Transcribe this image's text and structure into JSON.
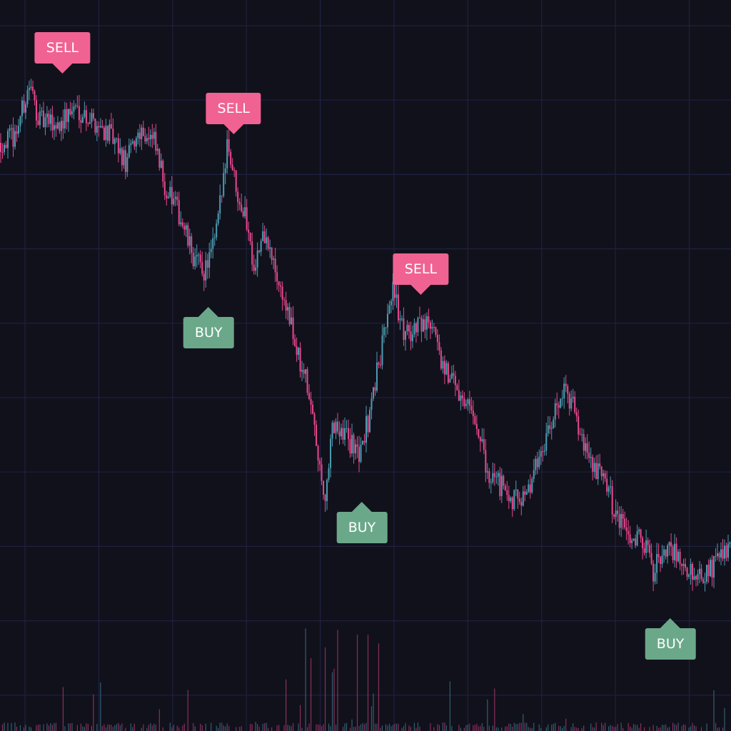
{
  "chart_data": {
    "type": "candlestick",
    "title": "",
    "xlabel": "",
    "ylabel": "",
    "grid": true,
    "ylim": [
      0,
      102.4
    ],
    "x_range": [
      0,
      410
    ],
    "colors": {
      "background": "#11111b",
      "grid": "#1e2142",
      "up": "#4d9db3",
      "down": "#e9488f",
      "sell": "#f06292",
      "buy": "#6aa889"
    },
    "close_path": [
      [
        0,
        82.4
      ],
      [
        8,
        83.4
      ],
      [
        16,
        90.4
      ],
      [
        22,
        85.4
      ],
      [
        32,
        84.9
      ],
      [
        42,
        87.4
      ],
      [
        52,
        85.4
      ],
      [
        60,
        83.9
      ],
      [
        70,
        79.4
      ],
      [
        78,
        84.4
      ],
      [
        86,
        82.4
      ],
      [
        92,
        76.4
      ],
      [
        100,
        72.4
      ],
      [
        108,
        66.4
      ],
      [
        114,
        64.4
      ],
      [
        120,
        68.4
      ],
      [
        124,
        75.4
      ],
      [
        127,
        82.9
      ],
      [
        132,
        76.4
      ],
      [
        138,
        71.4
      ],
      [
        142,
        65.4
      ],
      [
        148,
        69.4
      ],
      [
        154,
        64.4
      ],
      [
        160,
        59.4
      ],
      [
        166,
        53.4
      ],
      [
        172,
        48.4
      ],
      [
        178,
        38.4
      ],
      [
        182,
        32.4
      ],
      [
        186,
        43.4
      ],
      [
        192,
        42.4
      ],
      [
        200,
        38.4
      ],
      [
        206,
        43.4
      ],
      [
        212,
        51.4
      ],
      [
        220,
        62.4
      ],
      [
        226,
        55.4
      ],
      [
        232,
        56.4
      ],
      [
        240,
        57.4
      ],
      [
        248,
        51.4
      ],
      [
        258,
        47.4
      ],
      [
        266,
        44.4
      ],
      [
        272,
        36.9
      ],
      [
        282,
        33.9
      ],
      [
        288,
        32.4
      ],
      [
        294,
        32.4
      ],
      [
        302,
        38.4
      ],
      [
        308,
        42.4
      ],
      [
        314,
        47.4
      ],
      [
        320,
        46.4
      ],
      [
        326,
        40.4
      ],
      [
        332,
        37.4
      ],
      [
        340,
        34.4
      ],
      [
        346,
        29.4
      ],
      [
        354,
        27.4
      ],
      [
        362,
        26.4
      ],
      [
        366,
        22.4
      ],
      [
        374,
        26.4
      ],
      [
        380,
        24.4
      ],
      [
        384,
        23.4
      ],
      [
        390,
        21.4
      ],
      [
        398,
        22.4
      ],
      [
        404,
        24.4
      ],
      [
        410,
        25.4
      ]
    ],
    "signals": [
      {
        "type": "sell",
        "label": "SELL",
        "index": 35,
        "price": 92.1
      },
      {
        "type": "sell",
        "label": "SELL",
        "index": 131,
        "price": 83.6
      },
      {
        "type": "buy",
        "label": "BUY",
        "index": 117,
        "price": 59.4
      },
      {
        "type": "sell",
        "label": "SELL",
        "index": 236,
        "price": 61.1
      },
      {
        "type": "buy",
        "label": "BUY",
        "index": 203,
        "price": 32.1
      },
      {
        "type": "buy",
        "label": "BUY",
        "index": 376,
        "price": 15.8
      }
    ]
  }
}
